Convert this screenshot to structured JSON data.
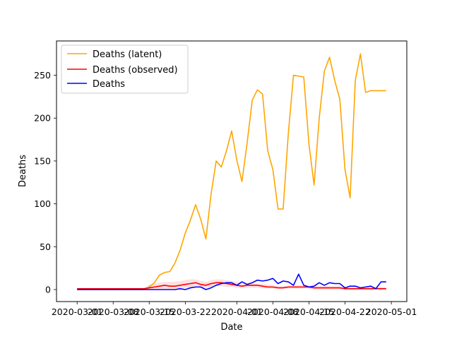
{
  "chart_data": {
    "type": "line",
    "xlabel": "Date",
    "ylabel": "Deaths",
    "x_ticks": [
      "2020-03-01",
      "2020-03-08",
      "2020-03-15",
      "2020-03-22",
      "2020-04-01",
      "2020-04-08",
      "2020-04-15",
      "2020-04-22",
      "2020-05-01"
    ],
    "y_ticks": [
      0,
      50,
      100,
      150,
      200,
      250
    ],
    "xlim": [
      "2020-02-26",
      "2020-05-04"
    ],
    "ylim": [
      -14,
      290
    ],
    "legend_position": "top-left",
    "grid": false,
    "dates": [
      "2020-03-01",
      "2020-03-02",
      "2020-03-03",
      "2020-03-04",
      "2020-03-05",
      "2020-03-06",
      "2020-03-07",
      "2020-03-08",
      "2020-03-09",
      "2020-03-10",
      "2020-03-11",
      "2020-03-12",
      "2020-03-13",
      "2020-03-14",
      "2020-03-15",
      "2020-03-16",
      "2020-03-17",
      "2020-03-18",
      "2020-03-19",
      "2020-03-20",
      "2020-03-21",
      "2020-03-22",
      "2020-03-23",
      "2020-03-24",
      "2020-03-25",
      "2020-03-26",
      "2020-03-27",
      "2020-03-28",
      "2020-03-29",
      "2020-03-30",
      "2020-03-31",
      "2020-04-01",
      "2020-04-02",
      "2020-04-03",
      "2020-04-04",
      "2020-04-05",
      "2020-04-06",
      "2020-04-07",
      "2020-04-08",
      "2020-04-09",
      "2020-04-10",
      "2020-04-11",
      "2020-04-12",
      "2020-04-13",
      "2020-04-14",
      "2020-04-15",
      "2020-04-16",
      "2020-04-17",
      "2020-04-18",
      "2020-04-19",
      "2020-04-20",
      "2020-04-21",
      "2020-04-22",
      "2020-04-23",
      "2020-04-24",
      "2020-04-25",
      "2020-04-26",
      "2020-04-27",
      "2020-04-28",
      "2020-04-29",
      "2020-04-30"
    ],
    "series": [
      {
        "name": "Deaths (latent)",
        "color": "#ffa500",
        "values": [
          0,
          0,
          0,
          0,
          0,
          0,
          0,
          0,
          0,
          0,
          0,
          0,
          0,
          0,
          3,
          8,
          17,
          20,
          21,
          31,
          46,
          66,
          81,
          99,
          82,
          59,
          111,
          150,
          143,
          162,
          185,
          151,
          126,
          171,
          221,
          233,
          228,
          162,
          140,
          94,
          94,
          182,
          250,
          249,
          248,
          170,
          122,
          200,
          255,
          271,
          244,
          222,
          140,
          107,
          244,
          275,
          230,
          232,
          232,
          232,
          232
        ]
      },
      {
        "name": "Deaths (observed)",
        "color": "#ff0000",
        "values": [
          1,
          1,
          1,
          1,
          1,
          1,
          1,
          1,
          1,
          1,
          1,
          1,
          1,
          1,
          2,
          3,
          4,
          5,
          4,
          4,
          5,
          6,
          7,
          8,
          6,
          5,
          7,
          8,
          8,
          7,
          6,
          5,
          4,
          5,
          5,
          5,
          4,
          3,
          3,
          2,
          2,
          3,
          3,
          3,
          3,
          3,
          2,
          2,
          2,
          2,
          2,
          2,
          1,
          1,
          1,
          1,
          1,
          1,
          1,
          1,
          1
        ],
        "band_upper": [
          2,
          2,
          2,
          2,
          2,
          2,
          2,
          2,
          2,
          2,
          2,
          2,
          2,
          2,
          6,
          7,
          8,
          9,
          9,
          9,
          10,
          11,
          12,
          12,
          10,
          9,
          11,
          12,
          12,
          11,
          10,
          9,
          7,
          8,
          8,
          7,
          7,
          6,
          5,
          4,
          4,
          5,
          5,
          5,
          5,
          5,
          4,
          4,
          4,
          4,
          4,
          4,
          3,
          3,
          3,
          3,
          3,
          3,
          3,
          3,
          3
        ],
        "band_lower": [
          0,
          0,
          0,
          0,
          0,
          0,
          0,
          0,
          0,
          0,
          0,
          0,
          0,
          0,
          0,
          0,
          1,
          1,
          1,
          1,
          1,
          2,
          2,
          3,
          2,
          2,
          3,
          4,
          4,
          3,
          3,
          2,
          2,
          2,
          2,
          2,
          2,
          1,
          1,
          1,
          1,
          1,
          1,
          1,
          1,
          1,
          0,
          0,
          0,
          0,
          0,
          0,
          0,
          0,
          0,
          0,
          0,
          0,
          0,
          0,
          0
        ]
      },
      {
        "name": "Deaths",
        "color": "#0000ff",
        "values": [
          0,
          0,
          0,
          0,
          0,
          0,
          0,
          0,
          0,
          0,
          0,
          0,
          0,
          0,
          0,
          0,
          0,
          0,
          0,
          0,
          1,
          0,
          2,
          3,
          3,
          0,
          2,
          5,
          7,
          8,
          8,
          5,
          9,
          6,
          8,
          11,
          10,
          11,
          13,
          7,
          10,
          9,
          5,
          18,
          5,
          3,
          4,
          8,
          5,
          8,
          7,
          7,
          2,
          4,
          4,
          2,
          3,
          4,
          1,
          9,
          9
        ]
      }
    ]
  }
}
